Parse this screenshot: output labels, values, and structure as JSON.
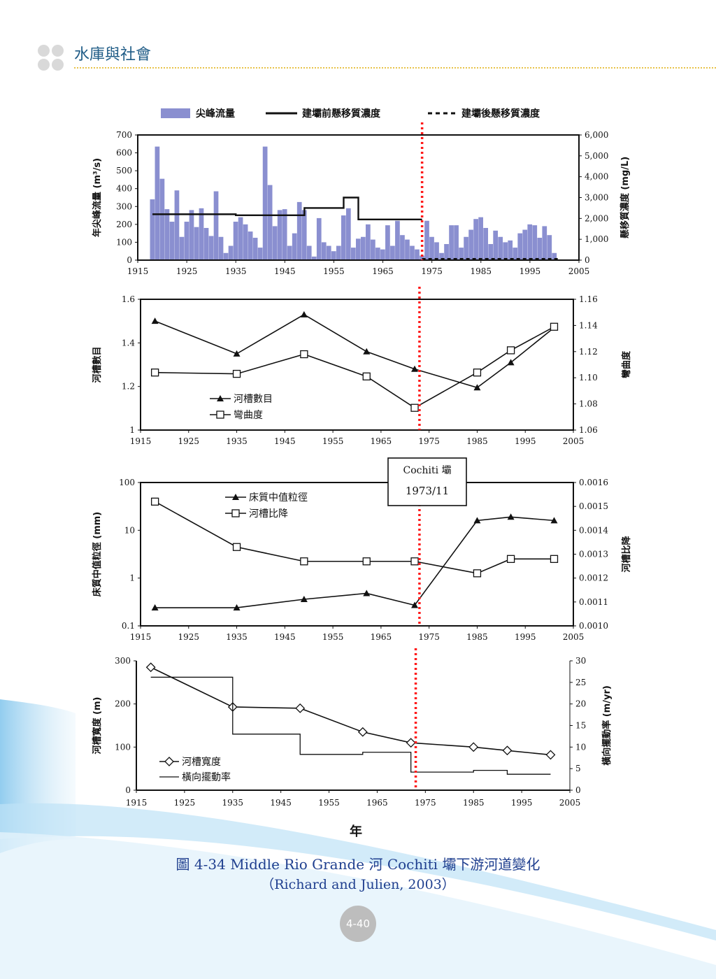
{
  "page": {
    "header_title": "水庫與社會",
    "caption_line1": "圖 4-34  Middle Rio Grande 河 Cochiti 壩下游河道變化",
    "caption_line2": "（Richard and Julien, 2003）",
    "page_number": "4-40",
    "x_axis_label": "年"
  },
  "colors": {
    "bar_fill": "#8a8fd0",
    "dam_line": "#ff1a1a",
    "header_text": "#1e5b86",
    "caption_text": "#1f3f8f",
    "header_rule": "#e8c34a",
    "page_circle": "#bdbdbd",
    "wave_blue": "#7fc4ec"
  },
  "chart_data": [
    {
      "type": "bar",
      "legend": [
        "尖峰流量",
        "建壩前懸移質濃度",
        "建壩後懸移質濃度"
      ],
      "xlim": [
        1915,
        2005
      ],
      "xticks": [
        "1915",
        "1925",
        "1935",
        "1945",
        "1955",
        "1965",
        "1975",
        "1985",
        "1995",
        "2005"
      ],
      "ylabel_left": "年尖峰流量 (m³/s)",
      "ylim_left": [
        0,
        700
      ],
      "yticks_left": [
        "0",
        "100",
        "200",
        "300",
        "400",
        "500",
        "600",
        "700"
      ],
      "ylabel_right": "懸移質濃度 (mg/L)",
      "ylim_right": [
        0,
        6000
      ],
      "yticks_right": [
        "0",
        "1,000",
        "2,000",
        "3,000",
        "4,000",
        "5,000",
        "6,000"
      ],
      "peak_flow": {
        "name": "尖峰流量",
        "x": [
          1918,
          1919,
          1920,
          1921,
          1922,
          1923,
          1924,
          1925,
          1926,
          1927,
          1928,
          1929,
          1930,
          1931,
          1932,
          1933,
          1934,
          1935,
          1936,
          1937,
          1938,
          1939,
          1940,
          1941,
          1942,
          1943,
          1944,
          1945,
          1946,
          1947,
          1948,
          1949,
          1950,
          1951,
          1952,
          1953,
          1954,
          1955,
          1956,
          1957,
          1958,
          1959,
          1960,
          1961,
          1962,
          1963,
          1964,
          1965,
          1966,
          1967,
          1968,
          1969,
          1970,
          1971,
          1972,
          1973,
          1974,
          1975,
          1976,
          1977,
          1978,
          1979,
          1980,
          1981,
          1982,
          1983,
          1984,
          1985,
          1986,
          1987,
          1988,
          1989,
          1990,
          1991,
          1992,
          1993,
          1994,
          1995,
          1996,
          1997,
          1998,
          1999,
          2000
        ],
        "values": [
          340,
          635,
          455,
          285,
          215,
          390,
          130,
          215,
          280,
          185,
          290,
          180,
          135,
          385,
          130,
          40,
          80,
          215,
          240,
          200,
          160,
          125,
          70,
          635,
          420,
          190,
          280,
          285,
          80,
          150,
          325,
          280,
          80,
          20,
          235,
          100,
          80,
          50,
          80,
          250,
          290,
          70,
          120,
          130,
          200,
          115,
          70,
          60,
          195,
          80,
          220,
          140,
          115,
          80,
          60,
          25,
          220,
          130,
          100,
          40,
          90,
          195,
          195,
          70,
          130,
          170,
          230,
          240,
          180,
          90,
          165,
          130,
          100,
          110,
          70,
          150,
          170,
          200,
          195,
          125,
          190,
          140,
          40
        ]
      },
      "pre_dam_concentration": {
        "name": "建壩前懸移質濃度",
        "x": [
          1918,
          1935,
          1935,
          1949,
          1949,
          1957,
          1957,
          1960,
          1960,
          1973
        ],
        "y": [
          2200,
          2200,
          2150,
          2150,
          2500,
          2500,
          3000,
          3000,
          1950,
          1950
        ]
      },
      "post_dam_concentration": {
        "name": "建壩後懸移質濃度",
        "x": [
          1973,
          2001
        ],
        "y": [
          60,
          60
        ]
      }
    },
    {
      "type": "line",
      "legend": [
        "河槽數目",
        "彎曲度"
      ],
      "xlim": [
        1915,
        2005
      ],
      "xticks": [
        "1915",
        "1925",
        "1935",
        "1945",
        "1955",
        "1965",
        "1975",
        "1985",
        "1995",
        "2005"
      ],
      "ylabel_left": "河槽數目",
      "ylim_left": [
        1,
        1.6
      ],
      "yticks_left": [
        "1",
        "1.2",
        "1.4",
        "1.6"
      ],
      "ylabel_right": "彎曲度",
      "ylim_right": [
        1.06,
        1.16
      ],
      "yticks_right": [
        "1.06",
        "1.08",
        "1.10",
        "1.12",
        "1.14",
        "1.16"
      ],
      "series": [
        {
          "name": "河槽數目",
          "axis": "left",
          "marker": "triangle",
          "x": [
            1918,
            1935,
            1949,
            1962,
            1972,
            1985,
            1992,
            2001
          ],
          "values": [
            1.5,
            1.35,
            1.53,
            1.36,
            1.28,
            1.195,
            1.31,
            1.47
          ]
        },
        {
          "name": "彎曲度",
          "axis": "right",
          "marker": "square",
          "x": [
            1918,
            1935,
            1949,
            1962,
            1972,
            1985,
            1992,
            2001
          ],
          "values": [
            1.104,
            1.103,
            1.118,
            1.101,
            1.077,
            1.104,
            1.121,
            1.139
          ]
        }
      ]
    },
    {
      "type": "line",
      "legend": [
        "床質中值粒徑",
        "河槽比降"
      ],
      "annotation_line1": "Cochiti 壩",
      "annotation_line2": "1973/11",
      "xlim": [
        1915,
        2005
      ],
      "xticks": [
        "1915",
        "1925",
        "1935",
        "1945",
        "1955",
        "1965",
        "1975",
        "1985",
        "1995",
        "2005"
      ],
      "ylabel_left": "床質中值粒徑 (mm)",
      "ylim_left": [
        0.1,
        100
      ],
      "yscale_left": "log",
      "yticks_left": [
        "0.1",
        "1",
        "10",
        "100"
      ],
      "ylabel_right": "河槽比降",
      "ylim_right": [
        0.001,
        0.0016
      ],
      "yticks_right": [
        "0.0010",
        "0.0011",
        "0.0012",
        "0.0013",
        "0.0014",
        "0.0015",
        "0.0016"
      ],
      "series": [
        {
          "name": "床質中值粒徑",
          "axis": "left",
          "marker": "triangle",
          "x": [
            1918,
            1935,
            1949,
            1962,
            1972,
            1985,
            1992,
            2001
          ],
          "values": [
            0.24,
            0.24,
            0.36,
            0.48,
            0.27,
            16,
            19,
            16
          ]
        },
        {
          "name": "河槽比降",
          "axis": "right",
          "marker": "square",
          "x": [
            1918,
            1935,
            1949,
            1962,
            1972,
            1985,
            1992,
            2001
          ],
          "values": [
            0.00152,
            0.00133,
            0.00127,
            0.00127,
            0.00127,
            0.00122,
            0.00128,
            0.00128
          ]
        }
      ]
    },
    {
      "type": "line",
      "legend": [
        "河槽寬度",
        "橫向擺動率"
      ],
      "xlim": [
        1915,
        2005
      ],
      "xticks": [
        "1915",
        "1925",
        "1935",
        "1945",
        "1955",
        "1965",
        "1975",
        "1985",
        "1995",
        "2005"
      ],
      "xlabel": "年",
      "ylabel_left": "河槽寬度 (m)",
      "ylim_left": [
        0,
        300
      ],
      "yticks_left": [
        "0",
        "100",
        "200",
        "300"
      ],
      "ylabel_right": "橫向擺動率 (m/yr)",
      "ylim_right": [
        0,
        30
      ],
      "yticks_right": [
        "0",
        "5",
        "10",
        "15",
        "20",
        "25",
        "30"
      ],
      "series": [
        {
          "name": "河槽寬度",
          "axis": "left",
          "marker": "diamond",
          "x": [
            1918,
            1935,
            1949,
            1962,
            1972,
            1985,
            1992,
            2001
          ],
          "values": [
            285,
            193,
            190,
            135,
            110,
            100,
            92,
            82
          ]
        },
        {
          "name": "橫向擺動率",
          "axis": "right",
          "marker": "step",
          "x": [
            1918,
            1935,
            1935,
            1949,
            1949,
            1962,
            1962,
            1972,
            1972,
            1985,
            1985,
            1992,
            1992,
            2001
          ],
          "values": [
            26.2,
            26.2,
            13,
            13,
            8.3,
            8.3,
            8.8,
            8.8,
            4.2,
            4.2,
            4.6,
            4.6,
            3.7,
            3.7
          ]
        }
      ]
    }
  ],
  "dam_year": 1973
}
